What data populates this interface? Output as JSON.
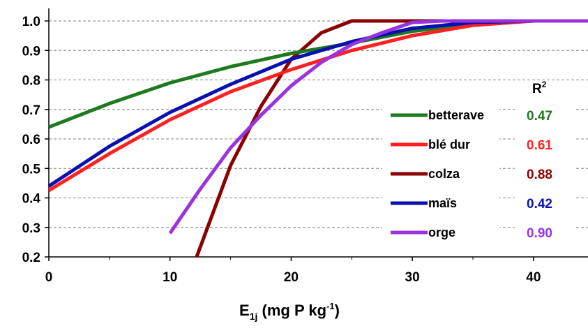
{
  "chart_data": {
    "type": "line",
    "title": "",
    "xlabel": {
      "main": "E",
      "subscript": "1j",
      "rest": " (mg P kg",
      "superscript": "-1",
      "end": ")"
    },
    "ylabel": "",
    "xlim": [
      0,
      44.5
    ],
    "ylim": [
      0.2,
      1.0
    ],
    "xticks": [
      "0",
      "10",
      "20",
      "30",
      "40"
    ],
    "yticks": [
      "0.2",
      "0.3",
      "0.4",
      "0.5",
      "0.6",
      "0.7",
      "0.8",
      "0.9",
      "1.0"
    ],
    "grid": "horizontal-dashed",
    "legend_placement": "right",
    "r2_header": {
      "main": "R",
      "superscript": "2"
    },
    "series": [
      {
        "name": "betterave",
        "color": "#1e7a1e",
        "r2": "0.47",
        "points": [
          [
            0,
            0.64
          ],
          [
            5,
            0.72
          ],
          [
            10,
            0.79
          ],
          [
            15,
            0.845
          ],
          [
            20,
            0.89
          ],
          [
            25,
            0.925
          ],
          [
            30,
            0.965
          ],
          [
            35,
            0.99
          ],
          [
            40,
            1.0
          ],
          [
            44.5,
            1.0
          ]
        ]
      },
      {
        "name": "blé dur",
        "color": "#ff2020",
        "r2": "0.61",
        "points": [
          [
            0,
            0.425
          ],
          [
            5,
            0.55
          ],
          [
            10,
            0.665
          ],
          [
            15,
            0.76
          ],
          [
            20,
            0.835
          ],
          [
            25,
            0.9
          ],
          [
            30,
            0.95
          ],
          [
            35,
            0.985
          ],
          [
            40,
            1.0
          ],
          [
            44.5,
            1.0
          ]
        ]
      },
      {
        "name": "colza",
        "color": "#8b0000",
        "r2": "0.88",
        "points": [
          [
            12.2,
            0.2
          ],
          [
            15,
            0.51
          ],
          [
            17.5,
            0.71
          ],
          [
            20,
            0.87
          ],
          [
            22.5,
            0.96
          ],
          [
            25,
            1.0
          ],
          [
            44.5,
            1.0
          ]
        ]
      },
      {
        "name": "maïs",
        "color": "#0a10b0",
        "r2": "0.42",
        "points": [
          [
            0,
            0.44
          ],
          [
            5,
            0.575
          ],
          [
            10,
            0.69
          ],
          [
            15,
            0.785
          ],
          [
            20,
            0.87
          ],
          [
            25,
            0.93
          ],
          [
            30,
            0.975
          ],
          [
            35,
            0.995
          ],
          [
            40,
            1.0
          ],
          [
            44.5,
            1.0
          ]
        ]
      },
      {
        "name": "orge",
        "color": "#9933dd",
        "r2": "0.90",
        "points": [
          [
            10,
            0.28
          ],
          [
            12.5,
            0.43
          ],
          [
            15,
            0.57
          ],
          [
            17.5,
            0.68
          ],
          [
            20,
            0.78
          ],
          [
            22.5,
            0.86
          ],
          [
            25,
            0.92
          ],
          [
            27.5,
            0.96
          ],
          [
            30,
            0.995
          ],
          [
            32.5,
            1.0
          ],
          [
            44.5,
            1.0
          ]
        ]
      }
    ]
  }
}
